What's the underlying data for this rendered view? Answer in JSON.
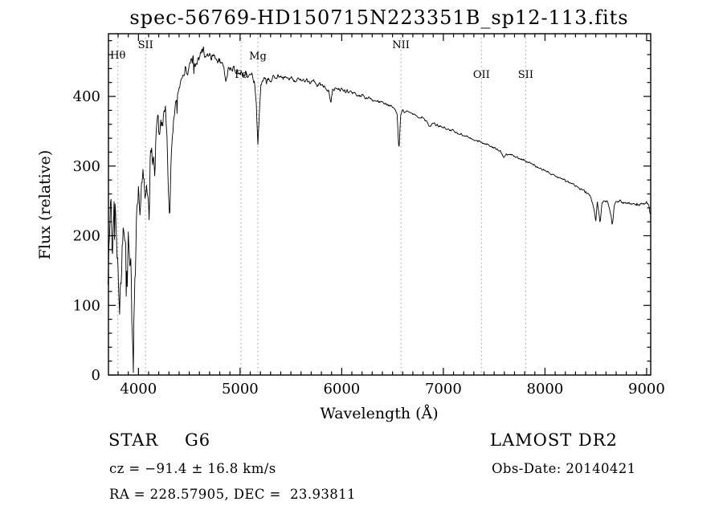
{
  "chart_data": {
    "type": "line",
    "title": "spec-56769-HD150715N223351B_sp12-113.fits",
    "xlabel": "Wavelength (Å)",
    "ylabel": "Flux (relative)",
    "xlim": [
      3705,
      9040
    ],
    "ylim": [
      0,
      490
    ],
    "x_major_ticks": [
      4000,
      5000,
      6000,
      7000,
      8000,
      9000
    ],
    "y_major_ticks": [
      0,
      100,
      200,
      300,
      400
    ],
    "x_minor_step": 100,
    "y_minor_step": 20,
    "grid": false,
    "line_color": "#000000",
    "ref_line_color": "#9a9a9a",
    "ref_lines": [
      {
        "label": "Hθ",
        "wavelength": 3798,
        "label_y": 73
      },
      {
        "label": "SII",
        "wavelength": 4070,
        "label_y": 60
      },
      {
        "label": "Fe",
        "wavelength": 5010,
        "label_y": 97
      },
      {
        "label": "Mg",
        "wavelength": 5175,
        "label_y": 74
      },
      {
        "label": "NII",
        "wavelength": 6583,
        "label_y": 60
      },
      {
        "label": "OII",
        "wavelength": 7375,
        "label_y": 97
      },
      {
        "label": "SII",
        "wavelength": 7810,
        "label_y": 97
      }
    ],
    "spectrum": {
      "sample_step": 5,
      "noise_seed": 20140421,
      "noise_amplitude": [
        [
          3700,
          40
        ],
        [
          3800,
          45
        ],
        [
          3900,
          48
        ],
        [
          3950,
          50
        ],
        [
          4000,
          34
        ],
        [
          4100,
          32
        ],
        [
          4200,
          28
        ],
        [
          4300,
          26
        ],
        [
          4400,
          20
        ],
        [
          4500,
          17
        ],
        [
          4600,
          14
        ],
        [
          4800,
          12
        ],
        [
          5000,
          10
        ],
        [
          5200,
          9
        ],
        [
          5400,
          8
        ],
        [
          5600,
          7
        ],
        [
          5800,
          7
        ],
        [
          6000,
          6
        ],
        [
          6300,
          5
        ],
        [
          6600,
          5
        ],
        [
          7000,
          4
        ],
        [
          7500,
          4
        ],
        [
          8000,
          4
        ],
        [
          8400,
          4
        ],
        [
          8700,
          5
        ],
        [
          9040,
          6
        ]
      ],
      "envelope": [
        [
          3700,
          140
        ],
        [
          3715,
          205
        ],
        [
          3730,
          250
        ],
        [
          3745,
          160
        ],
        [
          3760,
          230
        ],
        [
          3775,
          245
        ],
        [
          3790,
          170
        ],
        [
          3800,
          150
        ],
        [
          3815,
          95
        ],
        [
          3830,
          150
        ],
        [
          3845,
          205
        ],
        [
          3860,
          215
        ],
        [
          3875,
          195
        ],
        [
          3890,
          135
        ],
        [
          3900,
          195
        ],
        [
          3912,
          150
        ],
        [
          3925,
          170
        ],
        [
          3935,
          85
        ],
        [
          3948,
          35
        ],
        [
          3960,
          90
        ],
        [
          3972,
          140
        ],
        [
          3985,
          245
        ],
        [
          4000,
          265
        ],
        [
          4015,
          235
        ],
        [
          4030,
          280
        ],
        [
          4045,
          295
        ],
        [
          4060,
          255
        ],
        [
          4075,
          270
        ],
        [
          4090,
          260
        ],
        [
          4101,
          235
        ],
        [
          4115,
          310
        ],
        [
          4130,
          330
        ],
        [
          4145,
          315
        ],
        [
          4160,
          295
        ],
        [
          4175,
          340
        ],
        [
          4190,
          355
        ],
        [
          4205,
          345
        ],
        [
          4220,
          365
        ],
        [
          4235,
          355
        ],
        [
          4250,
          375
        ],
        [
          4265,
          380
        ],
        [
          4280,
          340
        ],
        [
          4295,
          260
        ],
        [
          4308,
          210
        ],
        [
          4320,
          300
        ],
        [
          4335,
          345
        ],
        [
          4350,
          370
        ],
        [
          4365,
          385
        ],
        [
          4380,
          400
        ],
        [
          4400,
          415
        ],
        [
          4420,
          425
        ],
        [
          4440,
          430
        ],
        [
          4460,
          438
        ],
        [
          4480,
          430
        ],
        [
          4500,
          445
        ],
        [
          4520,
          450
        ],
        [
          4540,
          455
        ],
        [
          4560,
          442
        ],
        [
          4580,
          452
        ],
        [
          4600,
          458
        ],
        [
          4620,
          462
        ],
        [
          4640,
          466
        ],
        [
          4660,
          458
        ],
        [
          4680,
          463
        ],
        [
          4700,
          468
        ],
        [
          4720,
          455
        ],
        [
          4740,
          462
        ],
        [
          4760,
          458
        ],
        [
          4780,
          450
        ],
        [
          4800,
          452
        ],
        [
          4820,
          446
        ],
        [
          4840,
          440
        ],
        [
          4861,
          415
        ],
        [
          4880,
          438
        ],
        [
          4900,
          442
        ],
        [
          4920,
          436
        ],
        [
          4940,
          440
        ],
        [
          4960,
          434
        ],
        [
          4980,
          438
        ],
        [
          5000,
          430
        ],
        [
          5020,
          434
        ],
        [
          5040,
          430
        ],
        [
          5060,
          432
        ],
        [
          5080,
          428
        ],
        [
          5100,
          430
        ],
        [
          5120,
          432
        ],
        [
          5140,
          420
        ],
        [
          5160,
          390
        ],
        [
          5175,
          330
        ],
        [
          5190,
          380
        ],
        [
          5205,
          415
        ],
        [
          5220,
          424
        ],
        [
          5240,
          428
        ],
        [
          5260,
          420
        ],
        [
          5280,
          426
        ],
        [
          5300,
          422
        ],
        [
          5330,
          430
        ],
        [
          5360,
          426
        ],
        [
          5390,
          430
        ],
        [
          5420,
          424
        ],
        [
          5450,
          428
        ],
        [
          5480,
          424
        ],
        [
          5510,
          426
        ],
        [
          5540,
          422
        ],
        [
          5570,
          426
        ],
        [
          5600,
          422
        ],
        [
          5640,
          424
        ],
        [
          5680,
          420
        ],
        [
          5720,
          422
        ],
        [
          5760,
          416
        ],
        [
          5800,
          418
        ],
        [
          5840,
          412
        ],
        [
          5875,
          406
        ],
        [
          5893,
          392
        ],
        [
          5910,
          408
        ],
        [
          5940,
          412
        ],
        [
          5970,
          410
        ],
        [
          6000,
          410
        ],
        [
          6040,
          406
        ],
        [
          6080,
          408
        ],
        [
          6120,
          404
        ],
        [
          6160,
          402
        ],
        [
          6200,
          402
        ],
        [
          6240,
          398
        ],
        [
          6280,
          398
        ],
        [
          6320,
          394
        ],
        [
          6360,
          393
        ],
        [
          6400,
          391
        ],
        [
          6440,
          388
        ],
        [
          6480,
          386
        ],
        [
          6520,
          383
        ],
        [
          6545,
          375
        ],
        [
          6563,
          322
        ],
        [
          6580,
          372
        ],
        [
          6600,
          380
        ],
        [
          6640,
          378
        ],
        [
          6680,
          375
        ],
        [
          6720,
          373
        ],
        [
          6760,
          370
        ],
        [
          6800,
          368
        ],
        [
          6840,
          365
        ],
        [
          6867,
          356
        ],
        [
          6890,
          362
        ],
        [
          6930,
          360
        ],
        [
          6970,
          357
        ],
        [
          7000,
          356
        ],
        [
          7040,
          353
        ],
        [
          7080,
          351
        ],
        [
          7120,
          349
        ],
        [
          7160,
          346
        ],
        [
          7200,
          344
        ],
        [
          7240,
          342
        ],
        [
          7280,
          339
        ],
        [
          7320,
          337
        ],
        [
          7360,
          334
        ],
        [
          7400,
          332
        ],
        [
          7440,
          330
        ],
        [
          7480,
          327
        ],
        [
          7520,
          325
        ],
        [
          7560,
          322
        ],
        [
          7593,
          312
        ],
        [
          7620,
          317
        ],
        [
          7660,
          316
        ],
        [
          7700,
          314
        ],
        [
          7740,
          311
        ],
        [
          7780,
          309
        ],
        [
          7820,
          306
        ],
        [
          7860,
          303
        ],
        [
          7900,
          301
        ],
        [
          7940,
          298
        ],
        [
          7980,
          295
        ],
        [
          8020,
          292
        ],
        [
          8060,
          289
        ],
        [
          8100,
          287
        ],
        [
          8140,
          284
        ],
        [
          8180,
          280
        ],
        [
          8220,
          278
        ],
        [
          8260,
          275
        ],
        [
          8300,
          272
        ],
        [
          8340,
          268
        ],
        [
          8380,
          265
        ],
        [
          8420,
          261
        ],
        [
          8450,
          256
        ],
        [
          8480,
          240
        ],
        [
          8500,
          222
        ],
        [
          8515,
          248
        ],
        [
          8542,
          218
        ],
        [
          8560,
          245
        ],
        [
          8590,
          250
        ],
        [
          8620,
          247
        ],
        [
          8650,
          228
        ],
        [
          8662,
          215
        ],
        [
          8680,
          240
        ],
        [
          8700,
          248
        ],
        [
          8730,
          250
        ],
        [
          8760,
          247
        ],
        [
          8790,
          248
        ],
        [
          8820,
          246
        ],
        [
          8850,
          247
        ],
        [
          8880,
          245
        ],
        [
          8910,
          246
        ],
        [
          8940,
          244
        ],
        [
          8970,
          246
        ],
        [
          9000,
          248
        ],
        [
          9020,
          242
        ],
        [
          9040,
          232
        ]
      ]
    }
  },
  "footer": {
    "object_type": "STAR",
    "subclass": "G6",
    "survey": "LAMOST DR2",
    "cz": "cz = −91.4 ± 16.8 km/s",
    "obs_date": "Obs-Date: 20140421",
    "radec": "RA = 228.57905, DEC =  23.93811"
  }
}
